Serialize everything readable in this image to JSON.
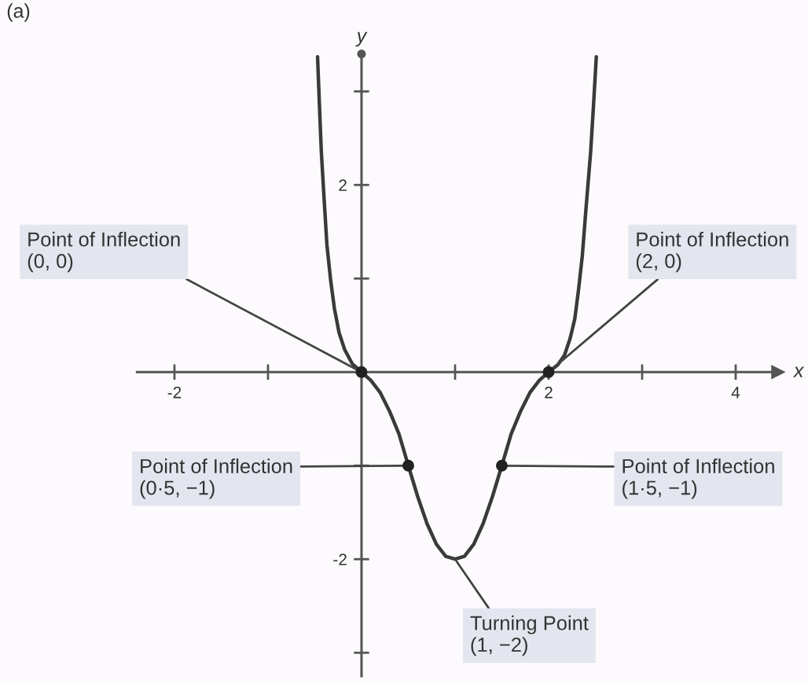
{
  "chart_data": {
    "type": "line",
    "title": "(a)",
    "xlabel": "x",
    "ylabel": "y",
    "series": [
      {
        "color": "#3a3a3a",
        "line_style": "solid",
        "x": [
          -0.47,
          -0.45,
          -0.43,
          -0.4,
          -0.37,
          -0.33,
          -0.29,
          -0.24,
          -0.18,
          -0.1,
          0,
          0.1,
          0.2,
          0.3,
          0.4,
          0.5,
          0.6,
          0.7,
          0.8,
          0.9,
          1.0,
          1.1,
          1.2,
          1.3,
          1.4,
          1.5,
          1.6,
          1.7,
          1.8,
          1.9,
          2.0,
          2.1,
          2.17,
          2.23,
          2.28,
          2.32,
          2.36,
          2.4,
          2.45,
          2.48,
          2.51
        ],
        "values": [
          3.37,
          2.85,
          2.36,
          1.85,
          1.36,
          0.98,
          0.68,
          0.42,
          0.24,
          0.09,
          0,
          -0.09,
          -0.22,
          -0.42,
          -0.66,
          -1,
          -1.33,
          -1.62,
          -1.84,
          -1.97,
          -2,
          -1.97,
          -1.84,
          -1.62,
          -1.33,
          -1,
          -0.66,
          -0.42,
          -0.22,
          -0.09,
          0,
          0.08,
          0.18,
          0.36,
          0.57,
          0.88,
          1.24,
          1.75,
          2.36,
          2.85,
          3.37
        ]
      },
      {
        "type": "scatter",
        "color": "#222222",
        "marker": "circle",
        "x": [
          0,
          0.5,
          1.5,
          2
        ],
        "values": [
          0,
          -1,
          -1,
          0
        ]
      }
    ],
    "xlim": [
      -2.4,
      4.45
    ],
    "ylim": [
      -3.25,
      3.4
    ],
    "xticks": [
      -2,
      {
        "value": -1,
        "label": null
      },
      {
        "value": 1,
        "label": null
      },
      2,
      {
        "value": 3,
        "label": null
      },
      4
    ],
    "yticks": [
      {
        "value": -3,
        "label": null
      },
      -2,
      {
        "value": -1,
        "label": null
      },
      {
        "value": 1,
        "label": null
      },
      2,
      {
        "value": 3,
        "label": null
      }
    ],
    "annotations": [
      {
        "text": "Point of Inflection\n(0, 0)",
        "x": 0,
        "y": 0
      },
      {
        "text": "Point of Inflection\n(2, 0)",
        "x": 2,
        "y": 0
      },
      {
        "text": "Point of Inflection\n(0·5, −1)",
        "x": 0.5,
        "y": -1
      },
      {
        "text": "Point of Inflection\n(1·5, −1)",
        "x": 1.5,
        "y": -1
      },
      {
        "text": "Turning Point\n(1, −2)",
        "x": 1,
        "y": -2
      }
    ],
    "grid": false,
    "legend": false
  }
}
